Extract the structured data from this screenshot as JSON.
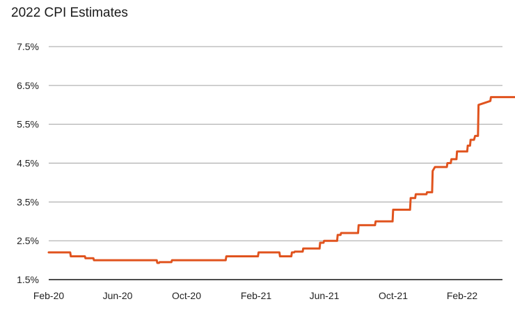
{
  "chart_data": {
    "type": "line",
    "title": "2022 CPI Estimates",
    "xlabel": "",
    "ylabel": "",
    "x_tick_labels": [
      "Feb-20",
      "Jun-20",
      "Oct-20",
      "Feb-21",
      "Jun-21",
      "Oct-21",
      "Feb-22"
    ],
    "y_tick_labels": [
      "1.5%",
      "2.5%",
      "3.5%",
      "4.5%",
      "5.5%",
      "6.5%",
      "7.5%"
    ],
    "y_ticks": [
      1.5,
      2.5,
      3.5,
      4.5,
      5.5,
      6.5,
      7.5
    ],
    "ylim": [
      1.5,
      7.5
    ],
    "xlim": [
      "2020-02-01",
      "2022-05-15"
    ],
    "grid": true,
    "line_color": "#e0531e",
    "grid_color": "#a0a0a0",
    "series": [
      {
        "x": [
          "2020-02-01",
          "2020-03-10",
          "2020-03-11",
          "2020-04-05",
          "2020-04-06",
          "2020-04-20",
          "2020-04-21",
          "2020-08-10",
          "2020-08-11",
          "2020-08-14",
          "2020-08-15",
          "2020-09-05",
          "2020-09-06",
          "2020-12-10",
          "2020-12-11",
          "2021-02-05",
          "2021-02-06",
          "2021-03-15",
          "2021-03-16",
          "2021-04-05",
          "2021-04-06",
          "2021-04-10",
          "2021-04-11",
          "2021-04-25",
          "2021-04-26",
          "2021-05-25",
          "2021-05-26",
          "2021-06-01",
          "2021-06-02",
          "2021-06-25",
          "2021-06-26",
          "2021-07-01",
          "2021-07-02",
          "2021-08-01",
          "2021-08-02",
          "2021-08-31",
          "2021-09-01",
          "2021-10-01",
          "2021-10-02",
          "2021-11-01",
          "2021-11-02",
          "2021-11-10",
          "2021-11-11",
          "2021-11-30",
          "2021-12-01",
          "2021-12-10",
          "2021-12-11",
          "2021-12-15",
          "2021-12-16",
          "2022-01-05",
          "2022-01-06",
          "2022-01-12",
          "2022-01-13",
          "2022-01-22",
          "2022-01-23",
          "2022-02-10",
          "2022-02-11",
          "2022-02-15",
          "2022-02-16",
          "2022-02-22",
          "2022-02-24",
          "2022-03-01",
          "2022-03-02",
          "2022-03-23",
          "2022-03-24",
          "2022-05-15"
        ],
        "values": [
          2.2,
          2.2,
          2.1,
          2.1,
          2.05,
          2.05,
          2.0,
          2.0,
          1.93,
          1.93,
          1.95,
          1.95,
          2.0,
          2.0,
          2.1,
          2.1,
          2.2,
          2.2,
          2.1,
          2.1,
          2.2,
          2.2,
          2.22,
          2.22,
          2.3,
          2.3,
          2.45,
          2.45,
          2.5,
          2.5,
          2.65,
          2.65,
          2.7,
          2.7,
          2.9,
          2.9,
          3.0,
          3.0,
          3.3,
          3.3,
          3.6,
          3.6,
          3.7,
          3.7,
          3.75,
          3.75,
          4.3,
          4.4,
          4.4,
          4.4,
          4.5,
          4.5,
          4.6,
          4.6,
          4.8,
          4.8,
          4.95,
          4.95,
          5.1,
          5.1,
          5.2,
          5.2,
          6.0,
          6.1,
          6.2,
          6.2
        ]
      }
    ],
    "series_note_x_end": "2022-05-15"
  }
}
